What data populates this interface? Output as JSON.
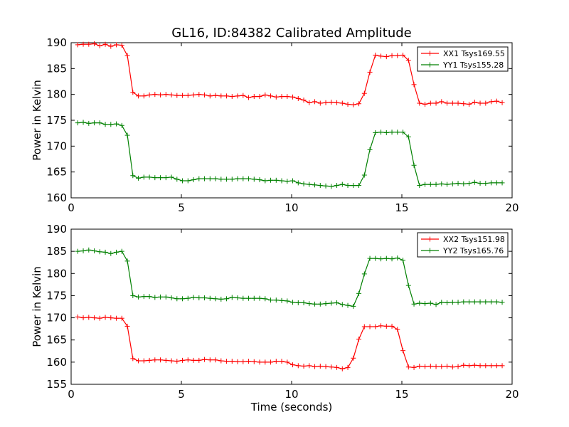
{
  "figure_title": "GL16, ID:84382 Calibrated Amplitude",
  "chart_data": [
    {
      "type": "line",
      "title": "GL16, ID:84382 Calibrated Amplitude",
      "xlabel": "",
      "ylabel": "Power in Kelvin",
      "xlim": [
        0,
        20
      ],
      "ylim": [
        160,
        190
      ],
      "xticks": [
        "0",
        "5",
        "10",
        "15",
        "20"
      ],
      "yticks": [
        "160",
        "165",
        "170",
        "175",
        "180",
        "185",
        "190"
      ],
      "grid": false,
      "legend": "top-right",
      "x": [
        0.3,
        0.55,
        0.8,
        1.05,
        1.3,
        1.55,
        1.8,
        2.05,
        2.3,
        2.55,
        2.8,
        3.05,
        3.3,
        3.55,
        3.8,
        4.05,
        4.3,
        4.55,
        4.8,
        5.05,
        5.3,
        5.55,
        5.8,
        6.05,
        6.3,
        6.55,
        6.8,
        7.05,
        7.3,
        7.55,
        7.8,
        8.05,
        8.3,
        8.55,
        8.8,
        9.05,
        9.3,
        9.55,
        9.8,
        10.05,
        10.3,
        10.55,
        10.8,
        11.05,
        11.3,
        11.55,
        11.8,
        12.05,
        12.3,
        12.55,
        12.8,
        13.05,
        13.3,
        13.55,
        13.8,
        14.05,
        14.3,
        14.55,
        14.8,
        15.05,
        15.3,
        15.55,
        15.8,
        16.05,
        16.3,
        16.55,
        16.8,
        17.05,
        17.3,
        17.55,
        17.8,
        18.05,
        18.3,
        18.55,
        18.8,
        19.05,
        19.3,
        19.55
      ],
      "series": [
        {
          "name": "XX1 Tsys169.55",
          "color": "#ff0000",
          "values": [
            189.6,
            189.7,
            189.7,
            189.8,
            189.4,
            189.7,
            189.3,
            189.6,
            189.5,
            187.5,
            180.4,
            179.7,
            179.7,
            179.9,
            180.0,
            179.9,
            180.0,
            179.9,
            179.8,
            179.8,
            179.8,
            179.9,
            180.0,
            179.9,
            179.7,
            179.8,
            179.7,
            179.7,
            179.6,
            179.7,
            179.8,
            179.4,
            179.6,
            179.6,
            179.9,
            179.7,
            179.5,
            179.6,
            179.6,
            179.5,
            179.2,
            178.9,
            178.4,
            178.6,
            178.3,
            178.4,
            178.5,
            178.4,
            178.3,
            178.1,
            178.0,
            178.2,
            180.2,
            184.3,
            187.6,
            187.4,
            187.3,
            187.5,
            187.5,
            187.6,
            186.6,
            181.9,
            178.3,
            178.1,
            178.3,
            178.3,
            178.6,
            178.3,
            178.3,
            178.3,
            178.2,
            178.1,
            178.5,
            178.3,
            178.3,
            178.6,
            178.7,
            178.4
          ]
        },
        {
          "name": "YY1 Tsys155.28",
          "color": "#008000",
          "values": [
            174.5,
            174.6,
            174.4,
            174.5,
            174.5,
            174.2,
            174.2,
            174.3,
            174.0,
            172.1,
            164.3,
            163.8,
            164.0,
            164.0,
            163.9,
            163.9,
            163.9,
            164.0,
            163.6,
            163.3,
            163.3,
            163.5,
            163.7,
            163.7,
            163.7,
            163.7,
            163.6,
            163.6,
            163.6,
            163.7,
            163.7,
            163.7,
            163.6,
            163.5,
            163.3,
            163.4,
            163.4,
            163.3,
            163.2,
            163.3,
            162.9,
            162.7,
            162.6,
            162.5,
            162.4,
            162.3,
            162.2,
            162.4,
            162.6,
            162.4,
            162.4,
            162.4,
            164.4,
            169.3,
            172.6,
            172.7,
            172.6,
            172.7,
            172.7,
            172.7,
            171.8,
            166.3,
            162.4,
            162.6,
            162.6,
            162.6,
            162.7,
            162.6,
            162.7,
            162.8,
            162.7,
            162.8,
            163.0,
            162.8,
            162.8,
            162.9,
            162.9,
            162.9
          ]
        }
      ]
    },
    {
      "type": "line",
      "title": "",
      "xlabel": "Time (seconds)",
      "ylabel": "Power in Kelvin",
      "xlim": [
        0,
        20
      ],
      "ylim": [
        155,
        190
      ],
      "xticks": [
        "0",
        "5",
        "10",
        "15",
        "20"
      ],
      "yticks": [
        "155",
        "160",
        "165",
        "170",
        "175",
        "180",
        "185",
        "190"
      ],
      "grid": false,
      "legend": "top-right",
      "x": [
        0.3,
        0.55,
        0.8,
        1.05,
        1.3,
        1.55,
        1.8,
        2.05,
        2.3,
        2.55,
        2.8,
        3.05,
        3.3,
        3.55,
        3.8,
        4.05,
        4.3,
        4.55,
        4.8,
        5.05,
        5.3,
        5.55,
        5.8,
        6.05,
        6.3,
        6.55,
        6.8,
        7.05,
        7.3,
        7.55,
        7.8,
        8.05,
        8.3,
        8.55,
        8.8,
        9.05,
        9.3,
        9.55,
        9.8,
        10.05,
        10.3,
        10.55,
        10.8,
        11.05,
        11.3,
        11.55,
        11.8,
        12.05,
        12.3,
        12.55,
        12.8,
        13.05,
        13.3,
        13.55,
        13.8,
        14.05,
        14.3,
        14.55,
        14.8,
        15.05,
        15.3,
        15.55,
        15.8,
        16.05,
        16.3,
        16.55,
        16.8,
        17.05,
        17.3,
        17.55,
        17.8,
        18.05,
        18.3,
        18.55,
        18.8,
        19.05,
        19.3,
        19.55
      ],
      "series": [
        {
          "name": "XX2 Tsys151.98",
          "color": "#ff0000",
          "values": [
            170.2,
            170.0,
            170.1,
            170.0,
            169.9,
            170.1,
            170.0,
            169.9,
            169.9,
            168.1,
            160.8,
            160.3,
            160.3,
            160.4,
            160.5,
            160.5,
            160.4,
            160.3,
            160.2,
            160.4,
            160.5,
            160.4,
            160.4,
            160.6,
            160.5,
            160.5,
            160.3,
            160.2,
            160.2,
            160.1,
            160.1,
            160.2,
            160.1,
            160.0,
            160.0,
            160.0,
            160.2,
            160.2,
            160.0,
            159.4,
            159.2,
            159.1,
            159.2,
            159.0,
            159.1,
            159.0,
            158.9,
            158.8,
            158.5,
            158.8,
            160.9,
            165.2,
            168.0,
            168.0,
            168.0,
            168.2,
            168.1,
            168.1,
            167.4,
            162.6,
            158.9,
            158.8,
            159.1,
            159.0,
            159.1,
            159.0,
            159.0,
            159.1,
            158.9,
            159.0,
            159.3,
            159.2,
            159.3,
            159.2,
            159.2,
            159.2,
            159.2,
            159.2
          ]
        },
        {
          "name": "YY2 Tsys165.76",
          "color": "#008000",
          "values": [
            185.0,
            185.1,
            185.3,
            185.1,
            184.9,
            184.8,
            184.5,
            184.8,
            185.0,
            182.8,
            175.0,
            174.7,
            174.8,
            174.8,
            174.6,
            174.7,
            174.7,
            174.5,
            174.3,
            174.3,
            174.4,
            174.6,
            174.5,
            174.5,
            174.4,
            174.3,
            174.2,
            174.3,
            174.6,
            174.5,
            174.4,
            174.4,
            174.4,
            174.4,
            174.3,
            174.0,
            174.0,
            173.9,
            173.8,
            173.5,
            173.4,
            173.4,
            173.2,
            173.1,
            173.1,
            173.2,
            173.3,
            173.4,
            173.0,
            172.8,
            172.6,
            175.5,
            179.9,
            183.4,
            183.4,
            183.3,
            183.4,
            183.3,
            183.5,
            183.0,
            177.3,
            173.1,
            173.3,
            173.2,
            173.3,
            173.0,
            173.5,
            173.4,
            173.5,
            173.5,
            173.6,
            173.6,
            173.6,
            173.6,
            173.6,
            173.6,
            173.6,
            173.5
          ]
        }
      ]
    }
  ]
}
